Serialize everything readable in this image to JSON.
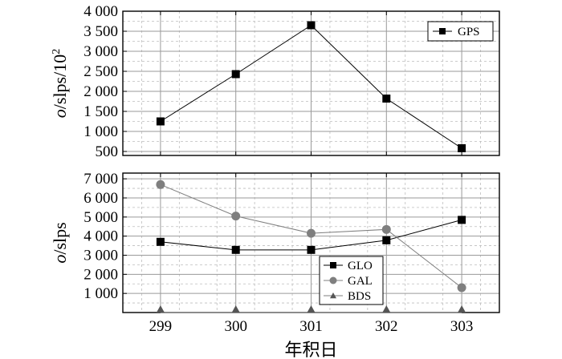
{
  "chart_data": [
    {
      "type": "line",
      "ylabel_italic": "o",
      "ylabel_rest": "/slps/10",
      "ylabel_sup": "2",
      "ylim": [
        400,
        4000
      ],
      "yticks": [
        500,
        1000,
        1500,
        2000,
        2500,
        3000,
        3500,
        4000
      ],
      "ytick_labels": [
        "500",
        "1 000",
        "1 500",
        "2 000",
        "2 500",
        "3 000",
        "3 500",
        "4 000"
      ],
      "x": [
        299,
        300,
        301,
        302,
        303
      ],
      "grid": true,
      "legend_position": "top-right",
      "series": [
        {
          "name": "GPS",
          "marker": "square",
          "color": "#000000",
          "values": [
            1250,
            2430,
            3650,
            1820,
            580
          ]
        }
      ]
    },
    {
      "type": "line",
      "ylabel_italic": "o",
      "ylabel_rest": "/slps",
      "ylim": [
        0,
        7300
      ],
      "yticks": [
        1000,
        2000,
        3000,
        4000,
        5000,
        6000,
        7000
      ],
      "ytick_labels": [
        "1 000",
        "2 000",
        "3 000",
        "4 000",
        "5 000",
        "6 000",
        "7 000"
      ],
      "x": [
        299,
        300,
        301,
        302,
        303
      ],
      "xticks": [
        299,
        300,
        301,
        302,
        303
      ],
      "xtick_labels": [
        "299",
        "300",
        "301",
        "302",
        "303"
      ],
      "xlabel": "年积日",
      "grid": true,
      "legend_position": "bottom-center-right",
      "series": [
        {
          "name": "GLO",
          "marker": "square",
          "color": "#000000",
          "values": [
            3700,
            3280,
            3280,
            3780,
            4850
          ]
        },
        {
          "name": "GAL",
          "marker": "circle",
          "color": "#7f7f7f",
          "values": [
            6700,
            5050,
            4150,
            4350,
            1300
          ]
        },
        {
          "name": "BDS",
          "marker": "triangle",
          "color": "#555555",
          "values": [
            0,
            0,
            0,
            0,
            0
          ]
        }
      ]
    }
  ]
}
